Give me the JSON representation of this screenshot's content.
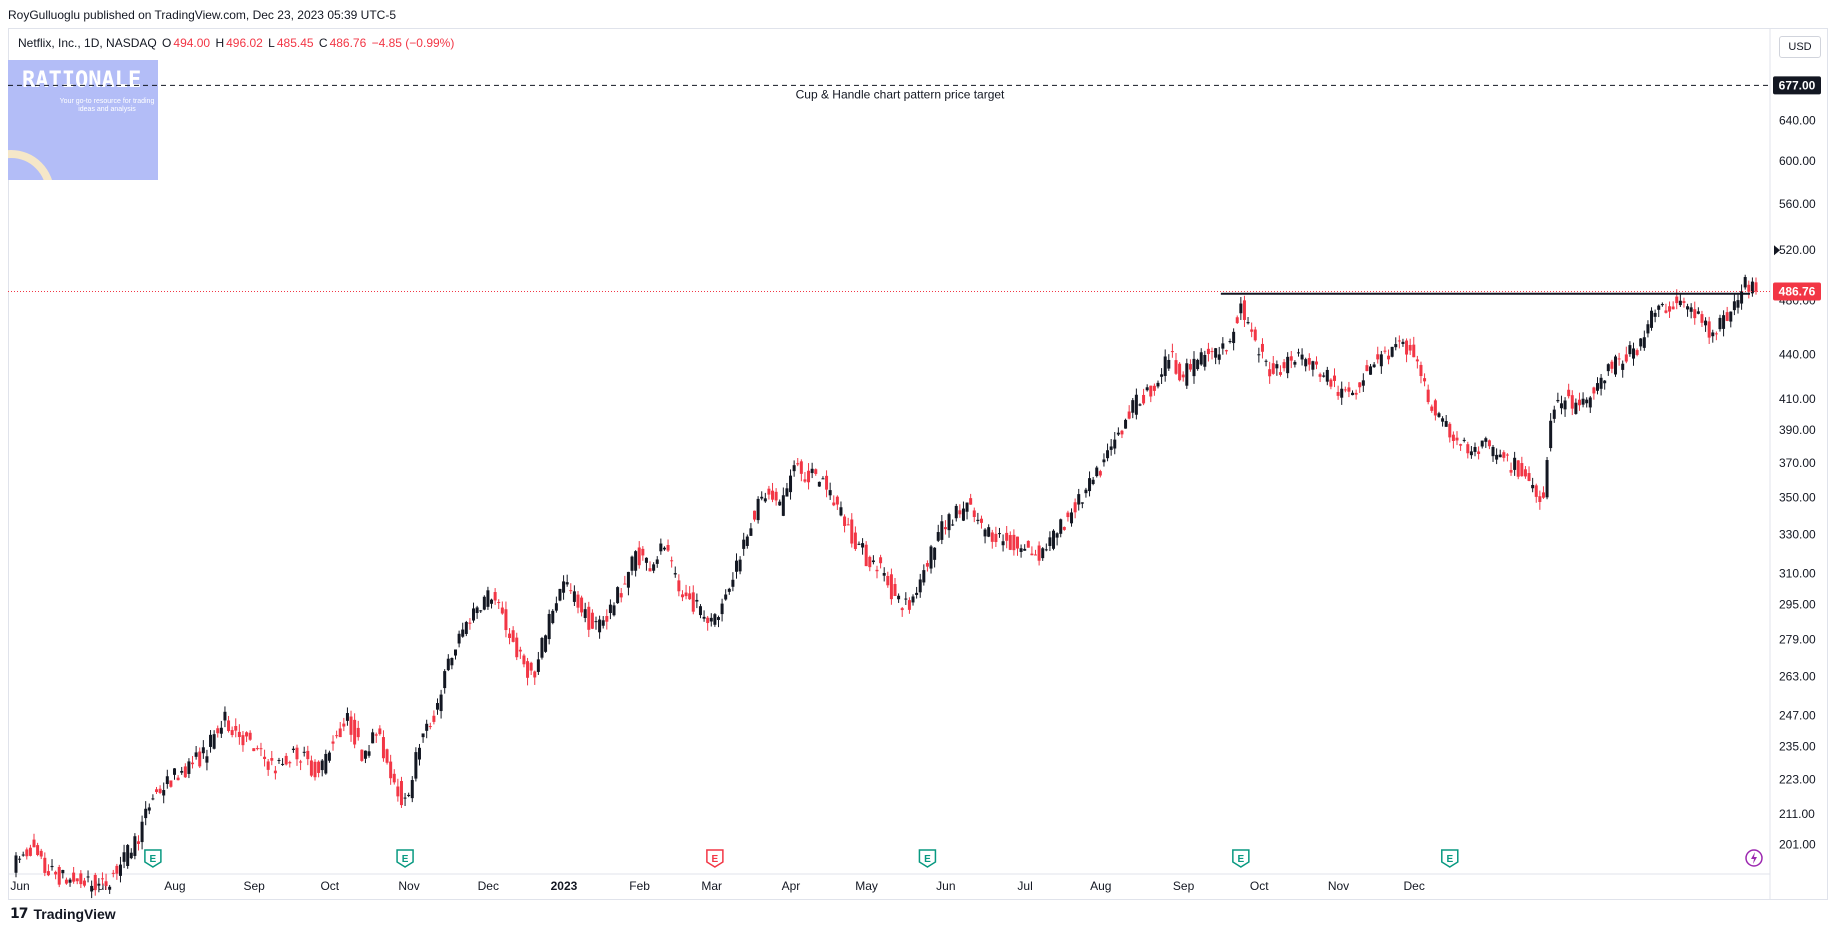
{
  "publisher_line": "RoyGulluoglu published on TradingView.com, Dec 23, 2023 05:39 UTC-5",
  "symbol": {
    "name": "Netflix, Inc., 1D, NASDAQ",
    "open_label": "O",
    "open": "494.00",
    "high_label": "H",
    "high": "496.02",
    "low_label": "L",
    "low": "485.45",
    "close_label": "C",
    "close": "486.76",
    "change": "−4.85 (−0.99%)"
  },
  "currency": "USD",
  "logo": {
    "title": "RATIONALE",
    "tagline": "Your go-to resource for trading ideas and analysis"
  },
  "brand": {
    "name": "TradingView",
    "mark": "17"
  },
  "colors": {
    "up": "#131722",
    "down": "#f23645",
    "price_line": "#f23645",
    "earnings_green": "#089981",
    "earnings_red": "#f23645",
    "logo_bg": "#b3bdf7"
  },
  "chart_data": {
    "type": "candlestick",
    "title": "Netflix, Inc., 1D, NASDAQ",
    "y_scale": "log",
    "ylim": [
      192,
      705
    ],
    "xlabel": "",
    "ylabel": "",
    "x_ticks": [
      "Jun",
      "Jul",
      "Aug",
      "Sep",
      "Oct",
      "Nov",
      "Dec",
      "2023",
      "Feb",
      "Mar",
      "Apr",
      "May",
      "Jun",
      "Jul",
      "Aug",
      "Sep",
      "Oct",
      "Nov",
      "Dec"
    ],
    "y_ticks": [
      "640.00",
      "600.00",
      "560.00",
      "520.00",
      "480.00",
      "440.00",
      "410.00",
      "390.00",
      "370.00",
      "350.00",
      "330.00",
      "310.00",
      "295.00",
      "279.00",
      "263.00",
      "247.00",
      "235.00",
      "223.00",
      "211.00",
      "201.00"
    ],
    "target_label": "677.00",
    "target_value": 677,
    "target_annotation": "Cup & Handle chart pattern price target",
    "last_price_label": "486.76",
    "last_price": 486.76,
    "resistance_level": 485,
    "earnings_markers": [
      {
        "month": "Jul",
        "kind": "E",
        "color": "green"
      },
      {
        "month": "Oct",
        "kind": "E",
        "color": "green"
      },
      {
        "month": "Jan",
        "kind": "E",
        "color": "red"
      },
      {
        "month": "Apr",
        "kind": "E",
        "color": "green"
      },
      {
        "month": "Jul",
        "kind": "E",
        "color": "green"
      },
      {
        "month": "Oct",
        "kind": "E",
        "color": "green"
      }
    ],
    "anchors": [
      [
        0,
        195
      ],
      [
        4,
        200
      ],
      [
        8,
        193
      ],
      [
        14,
        190
      ],
      [
        24,
        188
      ],
      [
        30,
        196
      ],
      [
        34,
        204
      ],
      [
        38,
        217
      ],
      [
        44,
        224
      ],
      [
        52,
        232
      ],
      [
        58,
        245
      ],
      [
        62,
        240
      ],
      [
        66,
        234
      ],
      [
        72,
        227
      ],
      [
        78,
        233
      ],
      [
        84,
        225
      ],
      [
        88,
        238
      ],
      [
        92,
        245
      ],
      [
        96,
        233
      ],
      [
        100,
        240
      ],
      [
        104,
        226
      ],
      [
        108,
        214
      ],
      [
        112,
        236
      ],
      [
        116,
        247
      ],
      [
        120,
        268
      ],
      [
        124,
        283
      ],
      [
        128,
        295
      ],
      [
        132,
        300
      ],
      [
        136,
        285
      ],
      [
        140,
        270
      ],
      [
        144,
        262
      ],
      [
        148,
        290
      ],
      [
        152,
        305
      ],
      [
        156,
        296
      ],
      [
        160,
        284
      ],
      [
        164,
        290
      ],
      [
        168,
        302
      ],
      [
        172,
        320
      ],
      [
        176,
        315
      ],
      [
        180,
        324
      ],
      [
        184,
        300
      ],
      [
        188,
        296
      ],
      [
        192,
        288
      ],
      [
        196,
        294
      ],
      [
        200,
        315
      ],
      [
        204,
        338
      ],
      [
        208,
        352
      ],
      [
        212,
        345
      ],
      [
        216,
        368
      ],
      [
        220,
        362
      ],
      [
        224,
        360
      ],
      [
        228,
        345
      ],
      [
        232,
        330
      ],
      [
        236,
        318
      ],
      [
        240,
        313
      ],
      [
        244,
        298
      ],
      [
        248,
        294
      ],
      [
        252,
        313
      ],
      [
        256,
        330
      ],
      [
        260,
        340
      ],
      [
        264,
        345
      ],
      [
        268,
        333
      ],
      [
        272,
        330
      ],
      [
        276,
        325
      ],
      [
        280,
        322
      ],
      [
        284,
        320
      ],
      [
        288,
        328
      ],
      [
        292,
        340
      ],
      [
        296,
        350
      ],
      [
        300,
        362
      ],
      [
        304,
        378
      ],
      [
        308,
        398
      ],
      [
        312,
        410
      ],
      [
        316,
        418
      ],
      [
        320,
        440
      ],
      [
        324,
        425
      ],
      [
        328,
        437
      ],
      [
        332,
        440
      ],
      [
        336,
        445
      ],
      [
        340,
        476
      ],
      [
        344,
        445
      ],
      [
        348,
        430
      ],
      [
        352,
        433
      ],
      [
        356,
        440
      ],
      [
        360,
        432
      ],
      [
        364,
        425
      ],
      [
        368,
        412
      ],
      [
        372,
        418
      ],
      [
        376,
        435
      ],
      [
        380,
        440
      ],
      [
        384,
        445
      ],
      [
        388,
        440
      ],
      [
        392,
        410
      ],
      [
        396,
        392
      ],
      [
        400,
        385
      ],
      [
        404,
        375
      ],
      [
        408,
        380
      ],
      [
        412,
        372
      ],
      [
        416,
        368
      ],
      [
        420,
        360
      ],
      [
        424,
        350
      ],
      [
        426,
        400
      ],
      [
        430,
        410
      ],
      [
        434,
        402
      ],
      [
        438,
        415
      ],
      [
        442,
        430
      ],
      [
        446,
        436
      ],
      [
        450,
        446
      ],
      [
        454,
        468
      ],
      [
        458,
        475
      ],
      [
        462,
        478
      ],
      [
        466,
        470
      ],
      [
        470,
        458
      ],
      [
        474,
        465
      ],
      [
        478,
        480
      ],
      [
        480,
        493
      ],
      [
        483,
        486.76
      ]
    ],
    "total_bars": 484
  }
}
